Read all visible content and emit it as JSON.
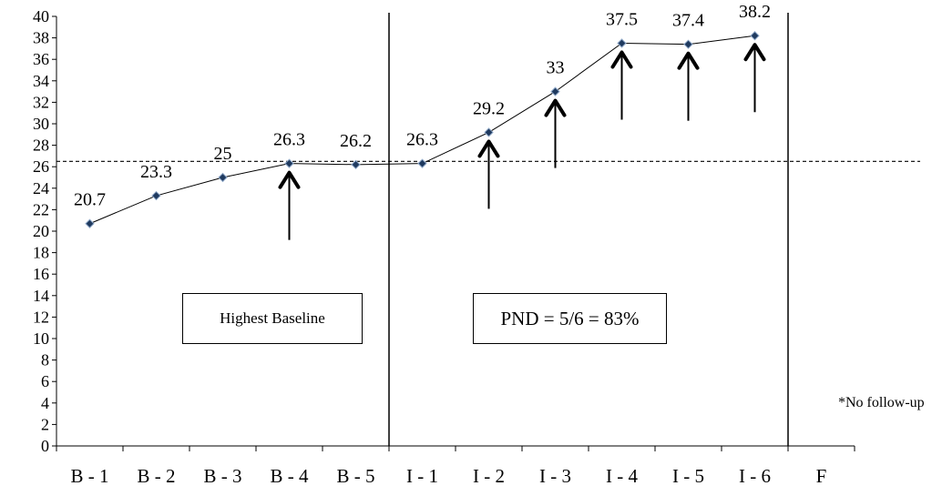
{
  "chart_data": {
    "type": "line",
    "categories": [
      "B - 1",
      "B - 2",
      "B - 3",
      "B - 4",
      "B - 5",
      "I - 1",
      "I - 2",
      "I - 3",
      "I - 4",
      "I - 5",
      "I - 6",
      "F"
    ],
    "series": [
      {
        "values": [
          20.7,
          23.3,
          25,
          26.3,
          26.2,
          26.3,
          29.2,
          33,
          37.5,
          37.4,
          38.2,
          null
        ]
      }
    ],
    "data_labels": [
      "20.7",
      "23.3",
      "25",
      "26.3",
      "26.2",
      "26.3",
      "29.2",
      "33",
      "37.5",
      "37.4",
      "38.2",
      ""
    ],
    "ylim": [
      0,
      40
    ],
    "ytick_step": 2,
    "highest_baseline": 26.5,
    "phase_change_after": [
      "B - 5",
      "I - 6"
    ],
    "arrows_at": [
      "B - 4",
      "I - 2",
      "I - 3",
      "I - 4",
      "I - 5",
      "I - 6"
    ],
    "grid": false,
    "line_color": "#000000",
    "marker_color": "#1f3a5f",
    "title": "",
    "xlabel": "",
    "ylabel": ""
  },
  "annotations": {
    "baseline_box": "Highest Baseline",
    "pnd_box": "PND = 5/6 = 83%",
    "footnote": "*No follow-up"
  }
}
